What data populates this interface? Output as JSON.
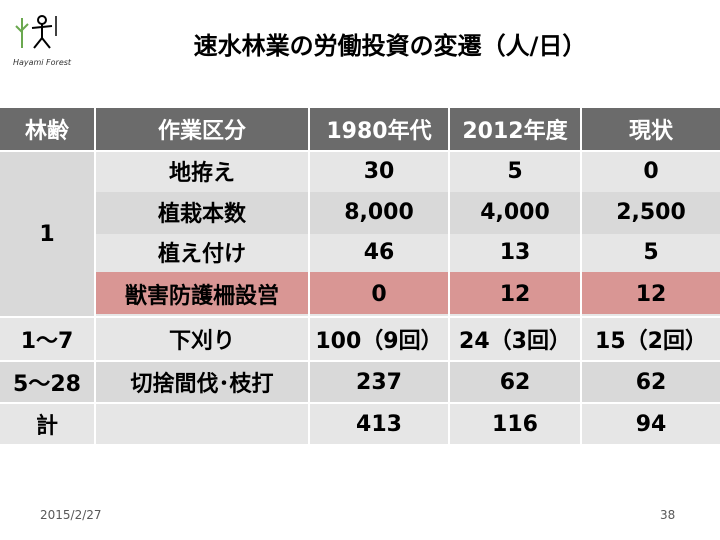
{
  "title": "速水林業の労働投資の変遷（人/日）",
  "logo": {
    "icon": "stick-figure-tree-logo",
    "caption": "Hayami Forest",
    "accent": "#6aa84f"
  },
  "table": {
    "headers": [
      "林齢",
      "作業区分",
      "1980年代",
      "2012年度",
      "現状"
    ],
    "age_groups": [
      "1",
      "1〜7",
      "5〜28",
      "計"
    ],
    "rows": [
      {
        "task": "地拵え",
        "v1980": "30",
        "v2012": "5",
        "now": "0"
      },
      {
        "task": "植栽本数",
        "v1980": "8,000",
        "v2012": "4,000",
        "now": "2,500"
      },
      {
        "task": "植え付け",
        "v1980": "46",
        "v2012": "13",
        "now": "5"
      },
      {
        "task": "獣害防護柵設営",
        "v1980": "0",
        "v2012": "12",
        "now": "12"
      },
      {
        "task": "下刈り",
        "v1980": "100（9回）",
        "v2012": "24（3回）",
        "now": "15（2回）"
      },
      {
        "task": "切捨間伐･枝打",
        "v1980": "237",
        "v2012": "62",
        "now": "62"
      },
      {
        "task": "",
        "v1980": "413",
        "v2012": "116",
        "now": "94"
      }
    ],
    "colors": {
      "header": "#6b6b6b",
      "row_light": "#e6e6e6",
      "row_mid": "#d9d9d9",
      "highlight": "#d99694"
    }
  },
  "footer": {
    "date": "2015/2/27",
    "page": "38"
  }
}
